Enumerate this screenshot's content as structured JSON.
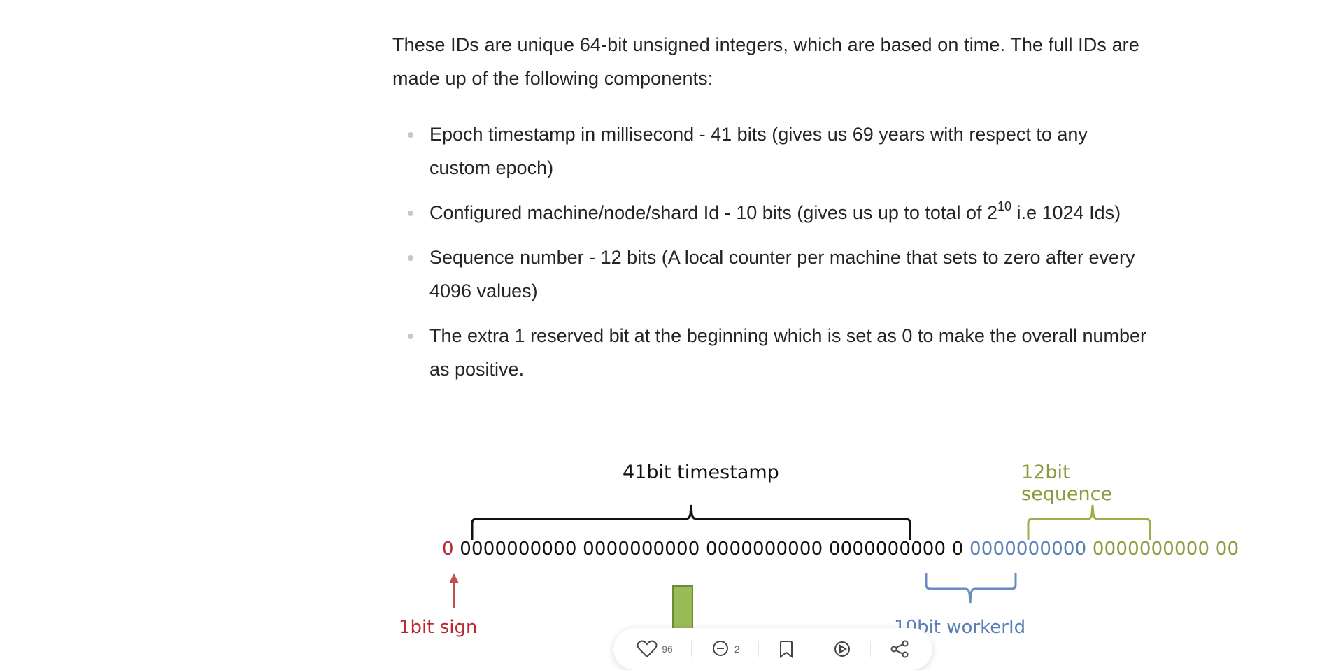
{
  "article": {
    "intro": "These IDs are unique 64-bit unsigned integers, which are based on time. The full IDs are made up of the following components:",
    "bullets": [
      {
        "text": "Epoch timestamp in millisecond - 41 bits (gives us 69 years with respect to any custom epoch)"
      },
      {
        "text_before": "Configured machine/node/shard Id - 10 bits (gives us up to total of 2",
        "sup": "10",
        "text_after": " i.e 1024 Ids)"
      },
      {
        "text": "Sequence number - 12 bits (A local counter per machine that sets to zero after every 4096 values)"
      },
      {
        "text": "The extra 1 reserved bit at the beginning which is set as 0 to make the overall number as positive."
      }
    ]
  },
  "diagram": {
    "timestamp_label": "41bit timestamp",
    "sequence_label": "12bit sequence",
    "sign_label": "1bit sign",
    "worker_label": "10bit workerId",
    "bits_sign": "0",
    "bits_timestamp": "0000000000 0000000000 0000000000 0000000000 0",
    "bits_worker": "0000000000",
    "bits_sequence": "0000000000 00",
    "colors": {
      "sign": "#b8292f",
      "timestamp": "#111111",
      "worker": "#5b7fb5",
      "sequence": "#8a9a3e"
    }
  },
  "actionbar": {
    "like_count": "96",
    "comment_count": "2",
    "icons": [
      "heart-icon",
      "comment-icon",
      "bookmark-icon",
      "listen-icon",
      "share-icon"
    ]
  }
}
